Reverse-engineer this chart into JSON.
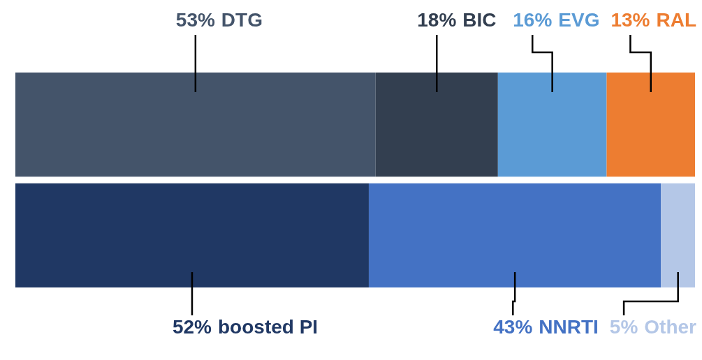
{
  "chart_data": {
    "type": "bar",
    "orientation": "horizontal",
    "stacked": true,
    "categories": [
      null,
      null
    ],
    "series": [
      {
        "name": "DTG",
        "color": "#44546a",
        "values": [
          53,
          null
        ],
        "value_labels": [
          "53%",
          null
        ]
      },
      {
        "name": "BIC",
        "color": "#333f50",
        "values": [
          18,
          null
        ],
        "value_labels": [
          "18%",
          null
        ]
      },
      {
        "name": "EVG",
        "color": "#5b9bd5",
        "values": [
          16,
          null
        ],
        "value_labels": [
          "16%",
          null
        ]
      },
      {
        "name": "RAL",
        "color": "#ed7d31",
        "values": [
          13,
          null
        ],
        "value_labels": [
          "13%",
          null
        ]
      },
      {
        "name": "boosted PI",
        "color": "#203864",
        "values": [
          null,
          52
        ],
        "value_labels": [
          null,
          "52%"
        ]
      },
      {
        "name": "NNRTI",
        "color": "#4472c4",
        "values": [
          null,
          43
        ],
        "value_labels": [
          null,
          "43%"
        ]
      },
      {
        "name": "Other",
        "color": "#b4c7e7",
        "values": [
          null,
          5
        ],
        "value_labels": [
          null,
          "5%"
        ]
      }
    ]
  }
}
